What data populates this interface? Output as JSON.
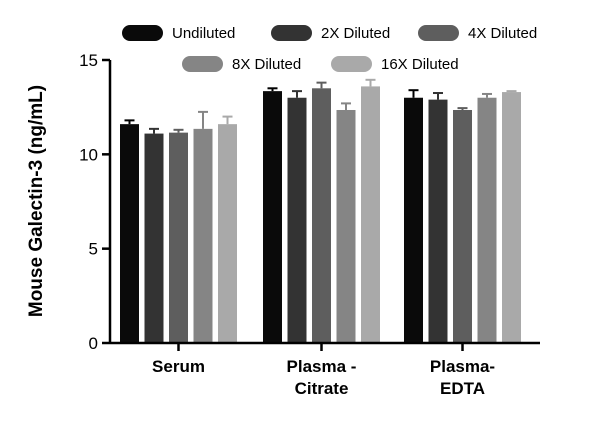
{
  "chart_data": {
    "type": "bar",
    "title": "",
    "xlabel": "",
    "ylabel": "Mouse Galectin-3 (ng/mL)",
    "ylim": [
      0,
      15
    ],
    "yticks": [
      0,
      5,
      10,
      15
    ],
    "grid": false,
    "legend_position": "top",
    "categories": [
      [
        "Serum"
      ],
      [
        "Plasma -",
        "Citrate"
      ],
      [
        "Plasma-",
        "EDTA"
      ]
    ],
    "series": [
      {
        "name": "Undiluted",
        "color": "#0a0a0a",
        "values": [
          11.6,
          13.35,
          13.0
        ],
        "errors": [
          0.2,
          0.15,
          0.4
        ]
      },
      {
        "name": "2X Diluted",
        "color": "#333333",
        "values": [
          11.1,
          13.0,
          12.9
        ],
        "errors": [
          0.25,
          0.35,
          0.35
        ]
      },
      {
        "name": "4X Diluted",
        "color": "#5e5e5e",
        "values": [
          11.15,
          13.5,
          12.35
        ],
        "errors": [
          0.15,
          0.3,
          0.1
        ]
      },
      {
        "name": "8X Diluted",
        "color": "#858585",
        "values": [
          11.35,
          12.35,
          13.0
        ],
        "errors": [
          0.9,
          0.35,
          0.2
        ]
      },
      {
        "name": "16X Diluted",
        "color": "#a9a9a9",
        "values": [
          11.6,
          13.6,
          13.3
        ],
        "errors": [
          0.4,
          0.35,
          0.05
        ]
      }
    ]
  }
}
